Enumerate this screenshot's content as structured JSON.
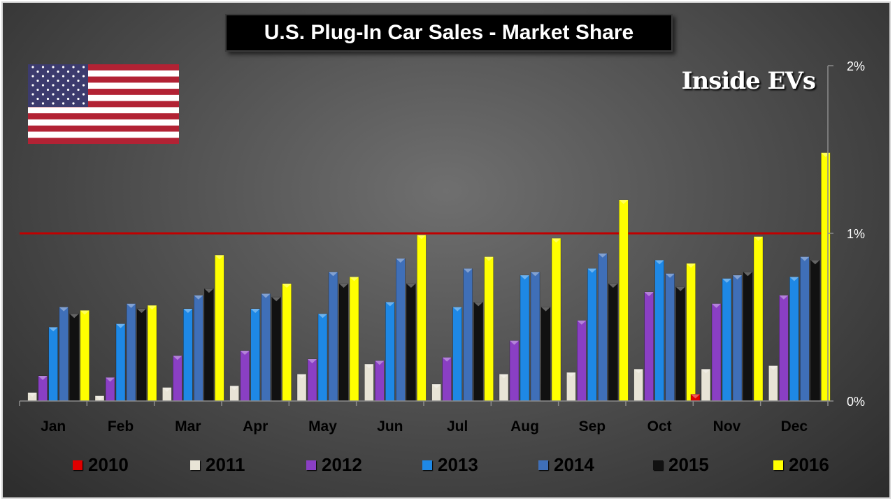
{
  "brand_text": "Inside EVs",
  "chart_data": {
    "type": "bar",
    "title": "U.S. Plug-In Car Sales - Market Share",
    "categories": [
      "Jan",
      "Feb",
      "Mar",
      "Apr",
      "May",
      "Jun",
      "Jul",
      "Aug",
      "Sep",
      "Oct",
      "Nov",
      "Dec"
    ],
    "ylim": [
      0,
      2
    ],
    "yticks": [
      0,
      1,
      2
    ],
    "ytick_labels": [
      "0%",
      "1%",
      "2%"
    ],
    "reference_line": 1.0,
    "reference_line_color": "#c00000",
    "legend_position": "bottom",
    "series": [
      {
        "name": "2010",
        "color": "#e00000",
        "values": [
          null,
          null,
          null,
          null,
          null,
          null,
          null,
          null,
          null,
          null,
          0.04,
          null
        ]
      },
      {
        "name": "2011",
        "color": "#e8e4d6",
        "values": [
          0.05,
          0.03,
          0.08,
          0.09,
          0.16,
          0.22,
          0.1,
          0.16,
          0.17,
          0.19,
          0.19,
          0.21
        ]
      },
      {
        "name": "2012",
        "color": "#8a3fc4",
        "values": [
          0.15,
          0.14,
          0.27,
          0.3,
          0.25,
          0.24,
          0.26,
          0.36,
          0.48,
          0.65,
          0.58,
          0.63
        ]
      },
      {
        "name": "2013",
        "color": "#1e88e5",
        "values": [
          0.44,
          0.46,
          0.55,
          0.55,
          0.52,
          0.59,
          0.56,
          0.75,
          0.79,
          0.84,
          0.73,
          0.74
        ]
      },
      {
        "name": "2014",
        "color": "#3f6fb8",
        "values": [
          0.56,
          0.58,
          0.63,
          0.64,
          0.77,
          0.85,
          0.79,
          0.77,
          0.88,
          0.76,
          0.75,
          0.86
        ]
      },
      {
        "name": "2015",
        "color": "#111111",
        "values": [
          0.52,
          0.55,
          0.67,
          0.62,
          0.7,
          0.7,
          0.59,
          0.56,
          0.7,
          0.68,
          0.77,
          0.84
        ]
      },
      {
        "name": "2016",
        "color": "#ffff00",
        "values": [
          0.54,
          0.57,
          0.87,
          0.7,
          0.74,
          0.99,
          0.86,
          0.97,
          1.2,
          0.82,
          0.98,
          1.48
        ]
      }
    ]
  }
}
